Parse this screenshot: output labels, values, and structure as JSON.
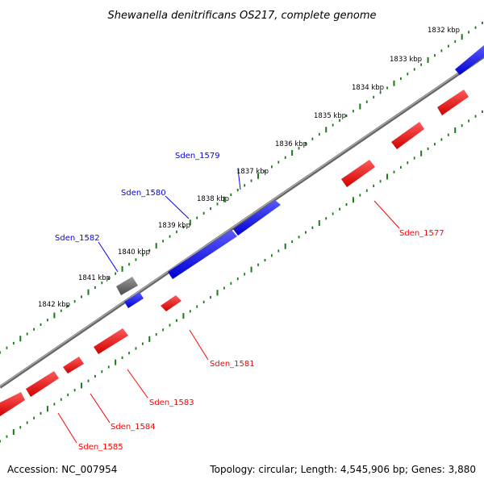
{
  "title": "Shewanella denitrificans OS217, complete genome",
  "footer": {
    "accession": "Accession: NC_007954",
    "summary": "Topology: circular; Length: 4,545,906 bp; Genes: 3,880"
  },
  "colors": {
    "forward": "#0000ff",
    "reverse": "#ff0000",
    "other": "#666666",
    "ticks": "#1a7a1a",
    "backbone": "#888888"
  },
  "ticks": [
    "1832 kbp",
    "1833 kbp",
    "1834 kbp",
    "1835 kbp",
    "1836 kbp",
    "1837 kbp",
    "1838 kbp",
    "1839 kbp",
    "1840 kbp",
    "1841 kbp",
    "1842 kbp"
  ],
  "gene_labels": {
    "forward": [
      "Sden_1579",
      "Sden_1580",
      "Sden_1582"
    ],
    "reverse": [
      "Sden_1577",
      "Sden_1581",
      "Sden_1583",
      "Sden_1584",
      "Sden_1585"
    ]
  }
}
